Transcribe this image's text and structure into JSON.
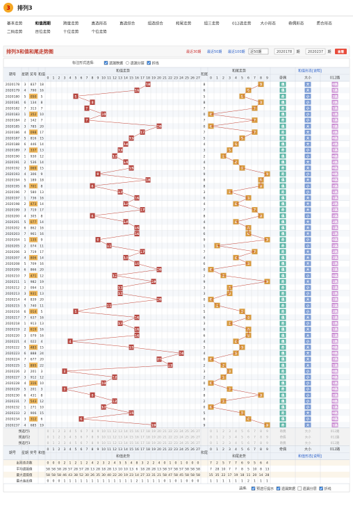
{
  "header": {
    "logo_text": "3",
    "title": "排列3"
  },
  "nav": [
    [
      "基本走势",
      "和值周期",
      "跨度走势",
      "直选形态",
      "直选综合",
      "组选综合",
      "和尾走势",
      "组三走势",
      "012选走势",
      "大小形态",
      "奇偶形态",
      "质合形态"
    ],
    [
      "二码走势",
      "百位走势",
      "十位走势",
      "个位走势"
    ]
  ],
  "nav_active": 1,
  "title_bar": {
    "title": "排列3和值和尾走势图",
    "ranges": [
      "最近30期",
      "最近50期",
      "最近100期"
    ],
    "select": "近50期",
    "from": "2020178",
    "from_unit": "期",
    "to": "2020237",
    "to_unit": "期",
    "button": "查看"
  },
  "controls": {
    "label": "标注形式选择:",
    "options": [
      {
        "text": "遗漏数据",
        "kind": "checkbox",
        "checked": true
      },
      {
        "text": "遗漏分层",
        "kind": "radio",
        "checked": false
      },
      {
        "text": "折线",
        "kind": "checkbox",
        "checked": true
      }
    ]
  },
  "table": {
    "headers": {
      "issue": "期号",
      "weekday": "星期",
      "draw": "奖号",
      "sum": "和值",
      "sum_trend": "和值走势",
      "tail": "和尾",
      "tail_trend": "和尾走势",
      "form": "和值形态[说明]",
      "parity": "奇偶",
      "size": "大小",
      "road": "012路"
    },
    "sum_cols": [
      0,
      1,
      2,
      3,
      4,
      5,
      6,
      7,
      8,
      9,
      10,
      11,
      12,
      13,
      14,
      15,
      16,
      17,
      18,
      19,
      20,
      21,
      22,
      23,
      24,
      25,
      26,
      27
    ],
    "tail_cols": [
      0,
      1,
      2,
      3,
      4,
      5,
      6,
      7,
      8,
      9
    ],
    "rows": [
      [
        "2020178",
        3,
        "837",
        18,
        8,
        "偶",
        "大",
        "0路"
      ],
      [
        "2020179",
        4,
        "790",
        16,
        6,
        "偶",
        "大",
        "1路"
      ],
      [
        "2020180",
        5,
        "050",
        5,
        5,
        "奇",
        "小",
        "2路"
      ],
      [
        "2020181",
        6,
        "134",
        8,
        8,
        "偶",
        "小",
        "2路"
      ],
      [
        "2020182",
        7,
        "313",
        7,
        7,
        "奇",
        "小",
        "1路"
      ],
      [
        "2020183",
        1,
        "352",
        10,
        0,
        "偶",
        "小",
        "1路"
      ],
      [
        "2020184",
        2,
        "142",
        7,
        7,
        "奇",
        "小",
        "1路"
      ],
      [
        "2020185",
        3,
        "785",
        20,
        0,
        "偶",
        "大",
        "2路"
      ],
      [
        "2020186",
        4,
        "098",
        17,
        7,
        "奇",
        "大",
        "2路"
      ],
      [
        "2020187",
        5,
        "816",
        15,
        5,
        "奇",
        "大",
        "0路"
      ],
      [
        "2020188",
        6,
        "446",
        14,
        4,
        "偶",
        "大",
        "2路"
      ],
      [
        "2020189",
        7,
        "337",
        13,
        3,
        "奇",
        "小",
        "1路"
      ],
      [
        "2020190",
        1,
        "930",
        12,
        2,
        "偶",
        "小",
        "0路"
      ],
      [
        "2020191",
        2,
        "536",
        14,
        4,
        "偶",
        "大",
        "2路"
      ],
      [
        "2020192",
        3,
        "069",
        15,
        5,
        "奇",
        "大",
        "0路"
      ],
      [
        "2020193",
        4,
        "306",
        9,
        9,
        "奇",
        "小",
        "0路"
      ],
      [
        "2020194",
        5,
        "189",
        18,
        8,
        "偶",
        "大",
        "0路"
      ],
      [
        "2020195",
        6,
        "701",
        8,
        8,
        "偶",
        "小",
        "2路"
      ],
      [
        "2020196",
        7,
        "580",
        13,
        3,
        "奇",
        "小",
        "1路"
      ],
      [
        "2020197",
        1,
        "736",
        16,
        6,
        "偶",
        "大",
        "1路"
      ],
      [
        "2020198",
        2,
        "473",
        14,
        4,
        "偶",
        "大",
        "2路"
      ],
      [
        "2020199",
        3,
        "719",
        17,
        7,
        "奇",
        "大",
        "2路"
      ],
      [
        "2020200",
        4,
        "305",
        8,
        8,
        "偶",
        "小",
        "2路"
      ],
      [
        "2020201",
        5,
        "077",
        14,
        4,
        "偶",
        "大",
        "2路"
      ],
      [
        "2020202",
        6,
        "862",
        16,
        6,
        "偶",
        "大",
        "1路"
      ],
      [
        "2020203",
        7,
        "961",
        16,
        6,
        "偶",
        "大",
        "1路"
      ],
      [
        "2020204",
        1,
        "135",
        9,
        9,
        "奇",
        "小",
        "0路"
      ],
      [
        "2020205",
        2,
        "074",
        11,
        1,
        "奇",
        "小",
        "2路"
      ],
      [
        "2020206",
        3,
        "719",
        17,
        7,
        "奇",
        "大",
        "2路"
      ],
      [
        "2020207",
        4,
        "806",
        14,
        4,
        "偶",
        "大",
        "2路"
      ],
      [
        "2020208",
        5,
        "709",
        16,
        6,
        "偶",
        "大",
        "1路"
      ],
      [
        "2020209",
        6,
        "866",
        20,
        0,
        "偶",
        "大",
        "2路"
      ],
      [
        "2020210",
        7,
        "471",
        12,
        2,
        "偶",
        "小",
        "0路"
      ],
      [
        "2020211",
        1,
        "982",
        19,
        9,
        "奇",
        "大",
        "1路"
      ],
      [
        "2020212",
        2,
        "094",
        13,
        3,
        "奇",
        "小",
        "1路"
      ],
      [
        "2020213",
        3,
        "931",
        13,
        3,
        "奇",
        "小",
        "1路"
      ],
      [
        "2020214",
        4,
        "839",
        20,
        0,
        "偶",
        "大",
        "2路"
      ],
      [
        "2020215",
        5,
        "740",
        11,
        1,
        "奇",
        "小",
        "2路"
      ],
      [
        "2020216",
        6,
        "014",
        5,
        5,
        "奇",
        "小",
        "2路"
      ],
      [
        "2020217",
        7,
        "637",
        16,
        6,
        "偶",
        "大",
        "1路"
      ],
      [
        "2020218",
        1,
        "913",
        13,
        3,
        "奇",
        "小",
        "1路"
      ],
      [
        "2020219",
        2,
        "619",
        16,
        6,
        "偶",
        "大",
        "1路"
      ],
      [
        "2020220",
        3,
        "079",
        16,
        6,
        "偶",
        "大",
        "1路"
      ],
      [
        "2020221",
        4,
        "022",
        4,
        4,
        "偶",
        "小",
        "1路"
      ],
      [
        "2020222",
        5,
        "483",
        15,
        5,
        "奇",
        "大",
        "0路"
      ],
      [
        "2020223",
        6,
        "888",
        24,
        4,
        "偶",
        "大",
        "0路"
      ],
      [
        "2020224",
        7,
        "677",
        20,
        0,
        "偶",
        "大",
        "2路"
      ],
      [
        "2020225",
        1,
        "895",
        22,
        2,
        "偶",
        "大",
        "1路"
      ],
      [
        "2020226",
        2,
        "201",
        3,
        3,
        "奇",
        "小",
        "0路"
      ],
      [
        "2020227",
        3,
        "912",
        12,
        2,
        "偶",
        "小",
        "0路"
      ],
      [
        "2020228",
        4,
        "316",
        10,
        0,
        "偶",
        "小",
        "1路"
      ],
      [
        "2020229",
        5,
        "201",
        3,
        3,
        "奇",
        "小",
        "0路"
      ],
      [
        "2020230",
        6,
        "431",
        8,
        8,
        "偶",
        "小",
        "2路"
      ],
      [
        "2020231",
        7,
        "543",
        12,
        2,
        "偶",
        "小",
        "0路"
      ],
      [
        "2020232",
        1,
        "271",
        10,
        0,
        "偶",
        "小",
        "1路"
      ],
      [
        "2020233",
        2,
        "906",
        15,
        5,
        "奇",
        "大",
        "0路"
      ],
      [
        "2020234",
        3,
        "312",
        6,
        6,
        "偶",
        "小",
        "0路"
      ],
      [
        "2020237",
        4,
        "685",
        19,
        9,
        "奇",
        "大",
        "1路"
      ]
    ],
    "preselect": [
      "预选行1",
      "预选行2",
      "预选行3"
    ],
    "stats": [
      {
        "label": "出现总次数",
        "sum": [
          0,
          0,
          0,
          2,
          1,
          2,
          1,
          2,
          4,
          2,
          3,
          2,
          4,
          5,
          5,
          4,
          8,
          3,
          2,
          2,
          4,
          0,
          1,
          0,
          1,
          0,
          0,
          0
        ],
        "tail": [
          7,
          2,
          5,
          7,
          7,
          6,
          9,
          5,
          6,
          4
        ]
      },
      {
        "label": "平均遗漏值",
        "sum": [
          58,
          58,
          58,
          28,
          57,
          28,
          57,
          28,
          13,
          28,
          18,
          28,
          13,
          10,
          10,
          13,
          6,
          18,
          28,
          28,
          13,
          58,
          57,
          58,
          57,
          58,
          58,
          58
        ],
        "tail": [
          7,
          28,
          10,
          7,
          7,
          8,
          5,
          10,
          8,
          13
        ]
      },
      {
        "label": "最大遗漏值",
        "sum": [
          58,
          58,
          58,
          46,
          43,
          38,
          52,
          30,
          26,
          35,
          30,
          40,
          22,
          20,
          19,
          23,
          14,
          27,
          33,
          31,
          21,
          58,
          47,
          58,
          45,
          58,
          58,
          58
        ],
        "tail": [
          15,
          35,
          22,
          17,
          19,
          18,
          11,
          20,
          14,
          28
        ]
      },
      {
        "label": "最大连出值",
        "sum": [
          0,
          0,
          0,
          1,
          1,
          1,
          1,
          1,
          1,
          1,
          1,
          1,
          1,
          1,
          1,
          1,
          2,
          1,
          1,
          1,
          1,
          0,
          1,
          0,
          1,
          0,
          0,
          0
        ],
        "tail": [
          1,
          1,
          1,
          1,
          1,
          1,
          2,
          1,
          1,
          1
        ]
      }
    ]
  },
  "footer": {
    "label": "选择:",
    "options": [
      {
        "text": "预选行提示",
        "kind": "checkbox",
        "checked": true
      },
      {
        "text": "遗漏数据",
        "kind": "checkbox",
        "checked": true
      },
      {
        "text": "遗漏分层",
        "kind": "checkbox",
        "checked": false
      },
      {
        "text": "折线",
        "kind": "checkbox",
        "checked": true
      }
    ]
  }
}
